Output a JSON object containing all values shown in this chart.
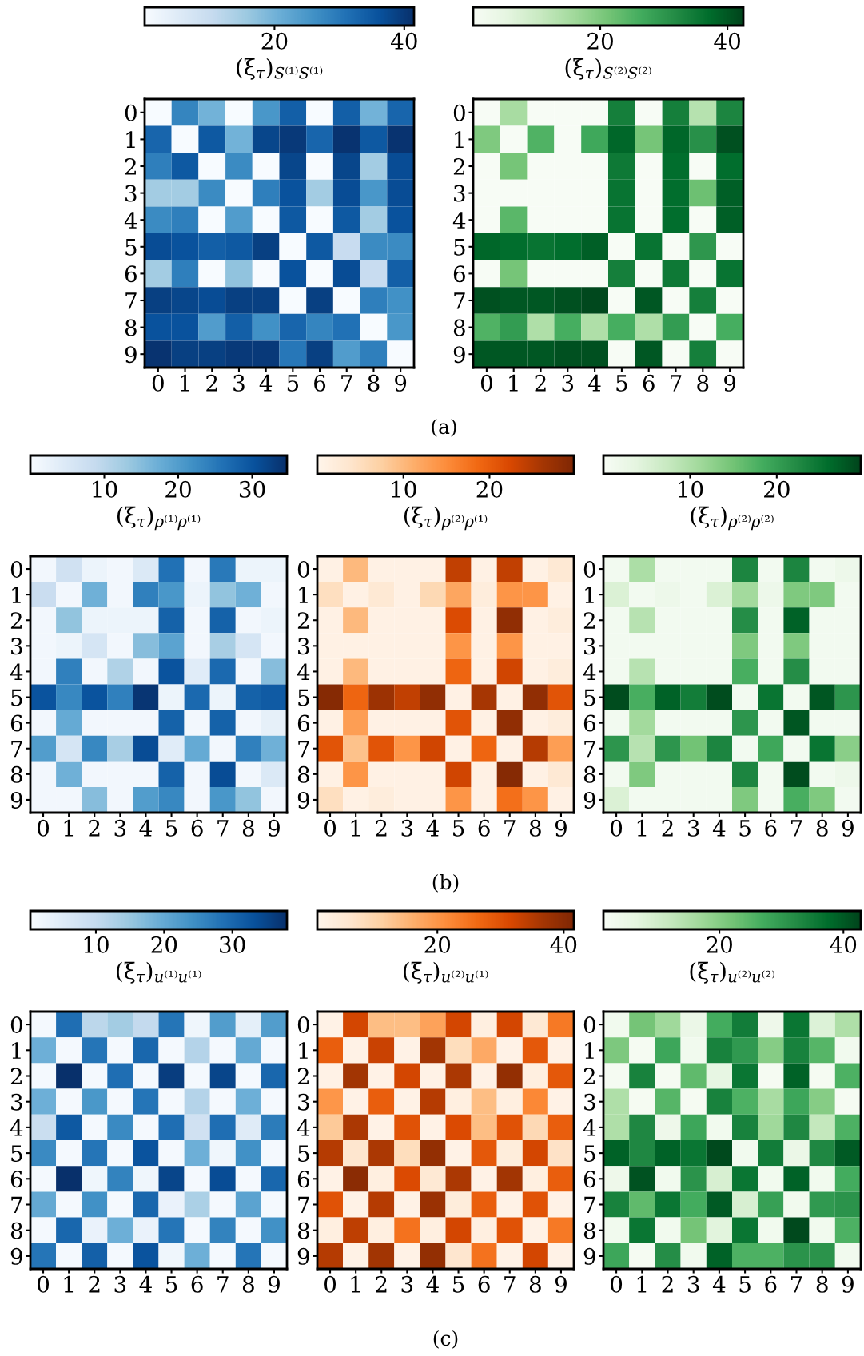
{
  "chart_data": [
    {
      "type": "heatmap",
      "clabel": "(ξ$_{τ}$)$_{S⁽¹⁾S⁽¹⁾}$",
      "categories": [
        "0",
        "1",
        "2",
        "3",
        "4",
        "5",
        "6",
        "7",
        "8",
        "9"
      ],
      "y_categories": [
        "0",
        "1",
        "2",
        "3",
        "4",
        "5",
        "6",
        "7",
        "8",
        "9"
      ],
      "clim": [
        0,
        41.5
      ],
      "cticks": [
        20,
        40
      ],
      "colors": [
        "#f7fbff",
        "#deebf7",
        "#c6dbef",
        "#9ecae1",
        "#6baed6",
        "#4292c6",
        "#2171b5",
        "#08519c",
        "#08306b"
      ],
      "annotations": [
        "(a)"
      ],
      "cells": [
        [
          0,
          28,
          20,
          0,
          25,
          34,
          0,
          34,
          20,
          33
        ],
        [
          33,
          0,
          35,
          20,
          38,
          40,
          33,
          41,
          35,
          41
        ],
        [
          29,
          35,
          0,
          27,
          0,
          38,
          0,
          38,
          15,
          37
        ],
        [
          15,
          15,
          27,
          0,
          29,
          36,
          15,
          37,
          25,
          37
        ],
        [
          27,
          29,
          0,
          24,
          0,
          35,
          0,
          35,
          15,
          36
        ],
        [
          37,
          36,
          34,
          35,
          39,
          0,
          35,
          10,
          27,
          27
        ],
        [
          15,
          29,
          0,
          17,
          0,
          36,
          0,
          37,
          10,
          34
        ],
        [
          39,
          38,
          37,
          39,
          39,
          0,
          39,
          0,
          29,
          26
        ],
        [
          36,
          36,
          24,
          34,
          26,
          33,
          28,
          31,
          0,
          25
        ],
        [
          41,
          39,
          39,
          40,
          40,
          30,
          39,
          24,
          29,
          0
        ]
      ]
    },
    {
      "type": "heatmap",
      "clabel": "(ξ$_{τ}$)$_{S⁽²⁾S⁽²⁾}$",
      "categories": [
        "0",
        "1",
        "2",
        "3",
        "4",
        "5",
        "6",
        "7",
        "8",
        "9"
      ],
      "y_categories": [
        "0",
        "1",
        "2",
        "3",
        "4",
        "5",
        "6",
        "7",
        "8",
        "9"
      ],
      "clim": [
        0,
        42.5
      ],
      "cticks": [
        20,
        40
      ],
      "colors": [
        "#f7fcf5",
        "#e5f5e0",
        "#c7e9c0",
        "#a1d99b",
        "#74c476",
        "#41ab5d",
        "#238b45",
        "#006d2c",
        "#00441b"
      ],
      "cells": [
        [
          0,
          15,
          0,
          0,
          0,
          34,
          0,
          34,
          13,
          33
        ],
        [
          20,
          0,
          25,
          0,
          27,
          38,
          21,
          38,
          31,
          41
        ],
        [
          0,
          21,
          0,
          0,
          0,
          35,
          0,
          37,
          0,
          37
        ],
        [
          0,
          0,
          0,
          0,
          0,
          36,
          0,
          37,
          22,
          39
        ],
        [
          0,
          24,
          0,
          0,
          0,
          36,
          0,
          37,
          0,
          39
        ],
        [
          38,
          37,
          36,
          37,
          39,
          0,
          36,
          0,
          30,
          0
        ],
        [
          0,
          21,
          0,
          0,
          0,
          34,
          0,
          35,
          0,
          36
        ],
        [
          41,
          40,
          40,
          41,
          42,
          0,
          40,
          0,
          34,
          0
        ],
        [
          25,
          29,
          14,
          26,
          14,
          26,
          14,
          29,
          0,
          26
        ],
        [
          40,
          40,
          40,
          41,
          41,
          0,
          40,
          0,
          34,
          0
        ]
      ]
    },
    {
      "type": "heatmap",
      "clabel": "(ξ$_{τ}$)$_{ρ⁽¹⁾ρ⁽¹⁾}$",
      "categories": [
        "0",
        "1",
        "2",
        "3",
        "4",
        "5",
        "6",
        "7",
        "8",
        "9"
      ],
      "y_categories": [
        "0",
        "1",
        "2",
        "3",
        "4",
        "5",
        "6",
        "7",
        "8",
        "9"
      ],
      "clim": [
        0,
        34.7
      ],
      "cticks": [
        10,
        20,
        30
      ],
      "colors": [
        "#f7fbff",
        "#deebf7",
        "#c6dbef",
        "#9ecae1",
        "#6baed6",
        "#4292c6",
        "#2171b5",
        "#08519c",
        "#08306b"
      ],
      "annotations": [
        "(b)"
      ],
      "cells": [
        [
          1,
          7,
          2,
          1,
          5,
          26,
          1,
          25,
          2,
          2
        ],
        [
          8,
          1,
          17,
          1,
          24,
          21,
          2,
          14,
          17,
          1
        ],
        [
          1,
          14,
          2,
          2,
          2,
          28,
          1,
          28,
          1,
          2
        ],
        [
          1,
          2,
          6,
          1,
          15,
          19,
          1,
          12,
          6,
          1
        ],
        [
          1,
          24,
          1,
          11,
          1,
          30,
          4,
          27,
          1,
          15
        ],
        [
          30,
          23,
          30,
          24,
          34,
          2,
          27,
          2,
          28,
          29
        ],
        [
          1,
          18,
          1,
          1,
          1,
          28,
          1,
          28,
          1,
          3
        ],
        [
          20,
          6,
          23,
          12,
          31,
          4,
          18,
          1,
          24,
          17
        ],
        [
          1,
          17,
          1,
          1,
          1,
          28,
          1,
          31,
          1,
          5
        ],
        [
          1,
          1,
          15,
          1,
          20,
          23,
          1,
          21,
          14,
          1
        ]
      ]
    },
    {
      "type": "heatmap",
      "clabel": "(ξ$_{τ}$)$_{ρ⁽²⁾ρ⁽¹⁾}$",
      "categories": [
        "0",
        "1",
        "2",
        "3",
        "4",
        "5",
        "6",
        "7",
        "8",
        "9"
      ],
      "y_categories": [
        "0",
        "1",
        "2",
        "3",
        "4",
        "5",
        "6",
        "7",
        "8",
        "9"
      ],
      "clim": [
        0,
        29.8
      ],
      "cticks": [
        10,
        20
      ],
      "colors": [
        "#fff5eb",
        "#fee6ce",
        "#fdd0a2",
        "#fdae6b",
        "#fd8d3c",
        "#f16913",
        "#d94801",
        "#a63603",
        "#7f2704"
      ],
      "cells": [
        [
          1,
          10,
          1,
          1,
          1,
          24,
          1,
          24,
          1,
          3
        ],
        [
          5,
          1,
          3,
          1,
          6,
          12,
          2,
          14,
          14,
          1
        ],
        [
          1,
          10,
          1,
          1,
          1,
          22,
          1,
          28,
          1,
          2
        ],
        [
          1,
          1,
          1,
          1,
          1,
          14,
          1,
          14,
          1,
          1
        ],
        [
          1,
          10,
          1,
          1,
          1,
          19,
          1,
          23,
          1,
          2
        ],
        [
          29,
          19,
          27,
          24,
          28,
          1,
          26,
          1,
          28,
          21
        ],
        [
          1,
          13,
          1,
          1,
          1,
          21,
          1,
          28,
          1,
          2
        ],
        [
          21,
          9,
          21,
          14,
          23,
          1,
          19,
          1,
          25,
          13
        ],
        [
          1,
          14,
          1,
          1,
          1,
          23,
          1,
          29,
          1,
          3
        ],
        [
          5,
          1,
          2,
          1,
          1,
          14,
          1,
          18,
          14,
          1
        ]
      ]
    },
    {
      "type": "heatmap",
      "clabel": "(ξ$_{τ}$)$_{ρ⁽²⁾ρ⁽²⁾}$",
      "categories": [
        "0",
        "1",
        "2",
        "3",
        "4",
        "5",
        "6",
        "7",
        "8",
        "9"
      ],
      "y_categories": [
        "0",
        "1",
        "2",
        "3",
        "4",
        "5",
        "6",
        "7",
        "8",
        "9"
      ],
      "clim": [
        0,
        29.7
      ],
      "cticks": [
        10,
        20
      ],
      "colors": [
        "#f7fcf5",
        "#e5f5e0",
        "#c7e9c0",
        "#a1d99b",
        "#74c476",
        "#41ab5d",
        "#238b45",
        "#006d2c",
        "#00441b"
      ],
      "cells": [
        [
          1,
          10,
          1,
          1,
          1,
          23,
          1,
          23,
          1,
          2
        ],
        [
          5,
          1,
          2,
          1,
          5,
          11,
          2,
          14,
          14,
          1
        ],
        [
          1,
          9,
          1,
          1,
          1,
          22,
          1,
          27,
          1,
          1
        ],
        [
          1,
          1,
          1,
          1,
          1,
          14,
          1,
          14,
          1,
          1
        ],
        [
          1,
          9,
          1,
          1,
          1,
          18,
          1,
          22,
          1,
          1
        ],
        [
          29,
          18,
          27,
          24,
          29,
          1,
          25,
          1,
          28,
          21
        ],
        [
          1,
          11,
          1,
          1,
          1,
          21,
          1,
          28,
          1,
          1
        ],
        [
          21,
          9,
          21,
          15,
          23,
          1,
          19,
          1,
          25,
          13
        ],
        [
          1,
          14,
          1,
          1,
          1,
          23,
          1,
          29,
          1,
          2
        ],
        [
          5,
          1,
          1,
          1,
          1,
          14,
          1,
          18,
          14,
          1
        ]
      ]
    },
    {
      "type": "heatmap",
      "clabel": "(ξ$_{τ}$)$_{u⁽¹⁾u⁽¹⁾}$",
      "categories": [
        "0",
        "1",
        "2",
        "3",
        "4",
        "5",
        "6",
        "7",
        "8",
        "9"
      ],
      "y_categories": [
        "0",
        "1",
        "2",
        "3",
        "4",
        "5",
        "6",
        "7",
        "8",
        "9"
      ],
      "clim": [
        0.4,
        38
      ],
      "cticks": [
        10,
        20,
        30
      ],
      "colors": [
        "#f7fbff",
        "#deebf7",
        "#c6dbef",
        "#9ecae1",
        "#6baed6",
        "#4292c6",
        "#2171b5",
        "#08519c",
        "#08306b"
      ],
      "annotations": [
        "(c)"
      ],
      "cells": [
        [
          1,
          29,
          11,
          14,
          10,
          28,
          2,
          22,
          4,
          22
        ],
        [
          19,
          1,
          28,
          1,
          30,
          1,
          12,
          1,
          20,
          1
        ],
        [
          1,
          38,
          1,
          29,
          1,
          36,
          1,
          35,
          1,
          30
        ],
        [
          19,
          1,
          23,
          1,
          28,
          1,
          12,
          1,
          19,
          1
        ],
        [
          9,
          32,
          1,
          25,
          1,
          29,
          8,
          29,
          5,
          27
        ],
        [
          25,
          1,
          28,
          1,
          33,
          1,
          19,
          2,
          24,
          1
        ],
        [
          1,
          38,
          2,
          26,
          2,
          35,
          1,
          34,
          1,
          30
        ],
        [
          20,
          1,
          24,
          1,
          30,
          3,
          13,
          1,
          21,
          1
        ],
        [
          1,
          30,
          3,
          19,
          3,
          28,
          1,
          26,
          1,
          24
        ],
        [
          28,
          1,
          31,
          1,
          33,
          2,
          19,
          1,
          28,
          1
        ]
      ]
    },
    {
      "type": "heatmap",
      "clabel": "(ξ$_{τ}$)$_{u⁽²⁾u⁽¹⁾}$",
      "categories": [
        "0",
        "1",
        "2",
        "3",
        "4",
        "5",
        "6",
        "7",
        "8",
        "9"
      ],
      "y_categories": [
        "0",
        "1",
        "2",
        "3",
        "4",
        "5",
        "6",
        "7",
        "8",
        "9"
      ],
      "clim": [
        1,
        41.6
      ],
      "cticks": [
        20,
        40
      ],
      "colors": [
        "#fff5eb",
        "#fee6ce",
        "#fdd0a2",
        "#fdae6b",
        "#fd8d3c",
        "#f16913",
        "#d94801",
        "#a63603",
        "#7f2704"
      ],
      "cells": [
        [
          2,
          32,
          14,
          14,
          18,
          32,
          3,
          32,
          5,
          24
        ],
        [
          28,
          2,
          33,
          2,
          37,
          8,
          17,
          2,
          29,
          2
        ],
        [
          2,
          37,
          2,
          32,
          2,
          36,
          2,
          39,
          3,
          29
        ],
        [
          20,
          2,
          28,
          2,
          35,
          3,
          14,
          3,
          22,
          2
        ],
        [
          12,
          36,
          2,
          30,
          2,
          31,
          14,
          30,
          9,
          28
        ],
        [
          35,
          6,
          36,
          8,
          39,
          2,
          29,
          4,
          32,
          7
        ],
        [
          2,
          40,
          3,
          31,
          5,
          36,
          2,
          37,
          3,
          28
        ],
        [
          30,
          2,
          35,
          2,
          38,
          4,
          28,
          2,
          30,
          2
        ],
        [
          3,
          34,
          3,
          25,
          3,
          32,
          3,
          30,
          2,
          24
        ],
        [
          35,
          2,
          37,
          2,
          39,
          6,
          25,
          2,
          32,
          2
        ]
      ]
    },
    {
      "type": "heatmap",
      "clabel": "(ξ$_{τ}$)$_{u⁽²⁾u⁽²⁾}$",
      "categories": [
        "0",
        "1",
        "2",
        "3",
        "4",
        "5",
        "6",
        "7",
        "8",
        "9"
      ],
      "y_categories": [
        "0",
        "1",
        "2",
        "3",
        "4",
        "5",
        "6",
        "7",
        "8",
        "9"
      ],
      "clim": [
        1.3,
        42.8
      ],
      "cticks": [
        20,
        40
      ],
      "colors": [
        "#f7fcf5",
        "#e5f5e0",
        "#c7e9c0",
        "#a1d99b",
        "#74c476",
        "#41ab5d",
        "#238b45",
        "#006d2c",
        "#00441b"
      ],
      "cells": [
        [
          3,
          22,
          17,
          5,
          27,
          35,
          4,
          36,
          8,
          15
        ],
        [
          21,
          2,
          28,
          3,
          34,
          30,
          20,
          34,
          25,
          3
        ],
        [
          2,
          34,
          2,
          24,
          6,
          36,
          2,
          39,
          2,
          26
        ],
        [
          15,
          2,
          25,
          2,
          34,
          26,
          16,
          28,
          20,
          2
        ],
        [
          15,
          33,
          4,
          28,
          3,
          34,
          17,
          33,
          12,
          26
        ],
        [
          39,
          33,
          39,
          36,
          42,
          3,
          35,
          5,
          33,
          40
        ],
        [
          4,
          41,
          3,
          31,
          9,
          36,
          3,
          39,
          3,
          27
        ],
        [
          34,
          24,
          36,
          27,
          40,
          9,
          29,
          3,
          30,
          31
        ],
        [
          3,
          36,
          3,
          22,
          7,
          36,
          3,
          42,
          3,
          26
        ],
        [
          28,
          2,
          32,
          3,
          39,
          26,
          26,
          31,
          31,
          3
        ]
      ]
    }
  ]
}
